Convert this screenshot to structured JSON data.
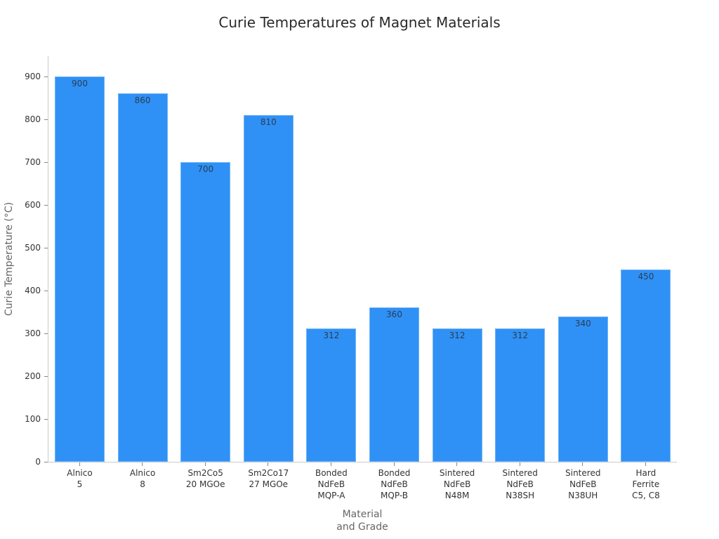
{
  "chart_data": {
    "type": "bar",
    "title": "Curie Temperatures of Magnet Materials",
    "xlabel": "Material\nand Grade",
    "ylabel": "Curie Temperature (°C)",
    "categories": [
      "Alnico\n5",
      "Alnico\n8",
      "Sm2Co5\n20 MGOe",
      "Sm2Co17\n27 MGOe",
      "Bonded\nNdFeB\nMQP-A",
      "Bonded\nNdFeB\nMQP-B",
      "Sintered\nNdFeB\nN48M",
      "Sintered\nNdFeB\nN38SH",
      "Sintered\nNdFeB\nN38UH",
      "Hard\nFerrite\nC5, C8"
    ],
    "values": [
      900,
      860,
      700,
      810,
      312,
      360,
      312,
      312,
      340,
      450
    ],
    "data_labels": [
      "900",
      "860",
      "700",
      "810",
      "312",
      "360",
      "312",
      "312",
      "340",
      "450"
    ],
    "yticks": [
      "0",
      "100",
      "200",
      "300",
      "400",
      "500",
      "600",
      "700",
      "800",
      "900"
    ],
    "ylim": [
      0,
      950
    ],
    "grid": false,
    "legend": null,
    "bar_color": "#2f91f5"
  }
}
